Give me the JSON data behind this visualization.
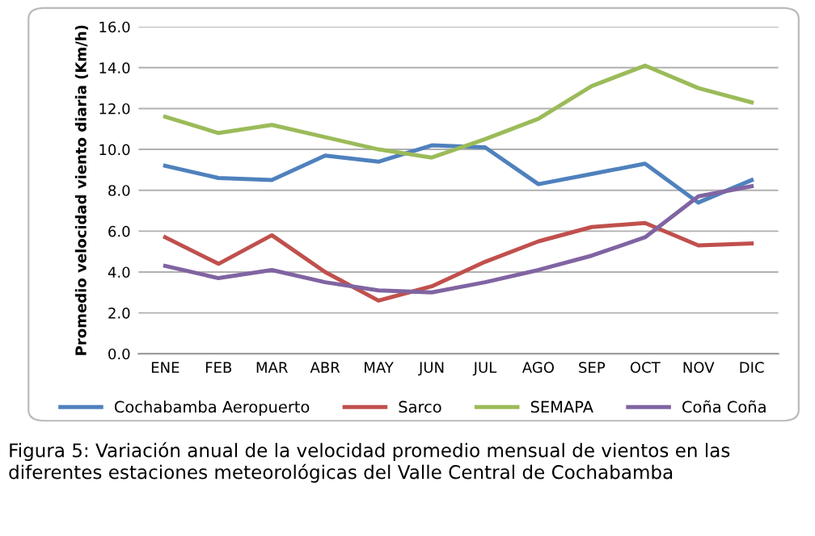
{
  "chart_data": {
    "type": "line",
    "categories": [
      "ENE",
      "FEB",
      "MAR",
      "ABR",
      "MAY",
      "JUN",
      "JUL",
      "AGO",
      "SEP",
      "OCT",
      "NOV",
      "DIC"
    ],
    "ylabel": "Promedio velocidad viento diaria (Km/h)",
    "ylim": [
      0,
      16
    ],
    "yticks": [
      {
        "value": 0,
        "label": "0.0"
      },
      {
        "value": 2,
        "label": "2.0"
      },
      {
        "value": 4,
        "label": "4.0"
      },
      {
        "value": 6,
        "label": "6.0"
      },
      {
        "value": 8,
        "label": "8.0"
      },
      {
        "value": 10,
        "label": "10.0"
      },
      {
        "value": 12,
        "label": "12.0"
      },
      {
        "value": 14,
        "label": "14.0"
      },
      {
        "value": 16,
        "label": "16.0"
      }
    ],
    "grid": "y",
    "legend": "bottom",
    "marker": "none",
    "line_style": "solid",
    "series": [
      {
        "name": "Cochabamba Aeropuerto",
        "color": "#4f81bd",
        "values": [
          9.2,
          8.6,
          8.5,
          9.7,
          9.4,
          10.2,
          10.1,
          8.3,
          8.8,
          9.3,
          7.4,
          8.5
        ]
      },
      {
        "name": "Sarco",
        "color": "#c0504d",
        "values": [
          5.7,
          4.4,
          5.8,
          4.0,
          2.6,
          3.3,
          4.5,
          5.5,
          6.2,
          6.4,
          5.3,
          5.4
        ]
      },
      {
        "name": "SEMAPA",
        "color": "#9bbb59",
        "values": [
          11.6,
          10.8,
          11.2,
          10.6,
          10.0,
          9.6,
          10.5,
          11.5,
          13.1,
          14.1,
          13.0,
          12.3
        ]
      },
      {
        "name": "Coña Coña",
        "color": "#8064a2",
        "values": [
          4.3,
          3.7,
          4.1,
          3.5,
          3.1,
          3.0,
          3.5,
          4.1,
          4.8,
          5.7,
          7.7,
          8.2
        ]
      }
    ],
    "annotations": [
      "Figura 5: Variación anual de la velocidad promedio mensual de vientos en las diferentes estaciones meteorológicas del Valle Central de Cochabamba"
    ]
  }
}
